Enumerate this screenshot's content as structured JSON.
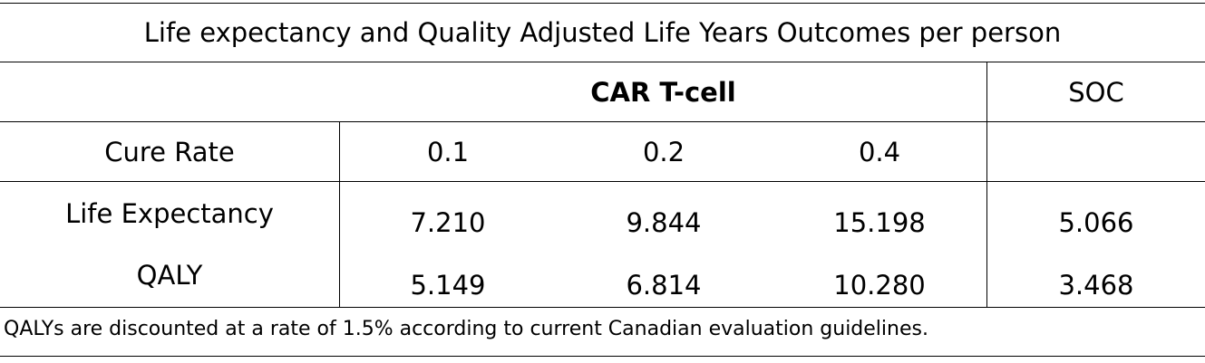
{
  "table": {
    "title": "Life expectancy and Quality Adjusted Life Years Outcomes per person",
    "group_header_car": "CAR T-cell",
    "group_header_soc": "SOC",
    "cure_rate_label": "Cure Rate",
    "cure_rates": [
      "0.1",
      "0.2",
      "0.4"
    ],
    "rows": [
      {
        "label": "Life Expectancy",
        "values": [
          "7.210",
          "9.844",
          "15.198"
        ],
        "soc": "5.066"
      },
      {
        "label": "QALY",
        "values": [
          "5.149",
          "6.814",
          "10.280"
        ],
        "soc": "3.468"
      }
    ],
    "footnote": "QALYs are discounted at a rate of 1.5% according to current Canadian evaluation guidelines."
  }
}
